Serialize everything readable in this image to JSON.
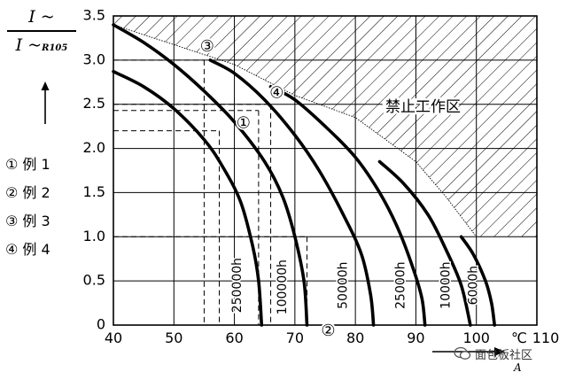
{
  "ylabel": {
    "numerator": "I ~",
    "denominator": "I ~",
    "denominator_sub": "R105"
  },
  "xlabel_sub": "A",
  "legend": [
    "① 例 1",
    "② 例 2",
    "③ 例 3",
    "④ 例 4"
  ],
  "forbidden_zone_label": "禁止工作区",
  "watermark": "面包板社区",
  "chart_data": {
    "type": "line",
    "title": "",
    "xlabel": "",
    "ylabel": "I ~ / I ~R105",
    "xlim": [
      40,
      110
    ],
    "ylim": [
      0,
      3.5
    ],
    "x_ticks": [
      "40",
      "50",
      "60",
      "70",
      "80",
      "90",
      "100",
      "110"
    ],
    "x_unit_label": "℃",
    "y_ticks": [
      "0",
      "0.5",
      "1.0",
      "1.5",
      "2.0",
      "2.5",
      "3.0",
      "3.5"
    ],
    "grid": true,
    "series": [
      {
        "name": "250000h",
        "points": [
          [
            40,
            2.87
          ],
          [
            45,
            2.7
          ],
          [
            50,
            2.45
          ],
          [
            55,
            2.1
          ],
          [
            58,
            1.8
          ],
          [
            61,
            1.4
          ],
          [
            63,
            0.9
          ],
          [
            64,
            0.5
          ],
          [
            64.5,
            0
          ]
        ]
      },
      {
        "name": "100000h",
        "points": [
          [
            40,
            3.4
          ],
          [
            45,
            3.2
          ],
          [
            50,
            2.95
          ],
          [
            55,
            2.65
          ],
          [
            60,
            2.3
          ],
          [
            65,
            1.85
          ],
          [
            68,
            1.45
          ],
          [
            70,
            1.0
          ],
          [
            71.5,
            0.5
          ],
          [
            72,
            0
          ]
        ]
      },
      {
        "name": "50000h",
        "points": [
          [
            56,
            3.0
          ],
          [
            60,
            2.85
          ],
          [
            65,
            2.55
          ],
          [
            70,
            2.15
          ],
          [
            74,
            1.75
          ],
          [
            78,
            1.25
          ],
          [
            81,
            0.8
          ],
          [
            82.5,
            0.35
          ],
          [
            83,
            0
          ]
        ]
      },
      {
        "name": "25000h",
        "points": [
          [
            66,
            2.7
          ],
          [
            70,
            2.55
          ],
          [
            75,
            2.25
          ],
          [
            80,
            1.9
          ],
          [
            84,
            1.5
          ],
          [
            87,
            1.1
          ],
          [
            89.5,
            0.65
          ],
          [
            91,
            0.3
          ],
          [
            91.5,
            0
          ]
        ]
      },
      {
        "name": "10000h",
        "points": [
          [
            84,
            1.85
          ],
          [
            88,
            1.6
          ],
          [
            92,
            1.25
          ],
          [
            95,
            0.85
          ],
          [
            97.5,
            0.45
          ],
          [
            99,
            0
          ]
        ]
      },
      {
        "name": "6000h",
        "points": [
          [
            97.5,
            1.0
          ],
          [
            99.5,
            0.8
          ],
          [
            101.5,
            0.5
          ],
          [
            102.5,
            0.25
          ],
          [
            103,
            0
          ]
        ]
      }
    ],
    "limit_line": [
      [
        40,
        3.4
      ],
      [
        60,
        2.95
      ],
      [
        70,
        2.6
      ],
      [
        80,
        2.35
      ],
      [
        90,
        1.85
      ],
      [
        95,
        1.45
      ],
      [
        100,
        1.0
      ]
    ],
    "dashed_guides": [
      {
        "label": "③",
        "x": 55,
        "y": 3.0
      },
      {
        "label": "④",
        "x": 66,
        "y": 2.5
      },
      {
        "label": "①",
        "x": 64,
        "y": 2.43
      },
      {
        "label": "①",
        "x": 57.5,
        "y": 2.2
      },
      {
        "label": "②",
        "x": 72,
        "y": 1.0
      }
    ],
    "markers": [
      {
        "label": "③",
        "x": 55.5,
        "y": 3.15
      },
      {
        "label": "④",
        "x": 67,
        "y": 2.62
      },
      {
        "label": "①",
        "x": 61.5,
        "y": 2.28
      },
      {
        "label": "②",
        "x": 75.5,
        "y": -0.07
      }
    ],
    "curve_labels": [
      {
        "text": "250000h",
        "x": 60.5,
        "y": 0.45
      },
      {
        "text": "100000h",
        "x": 68,
        "y": 0.43
      },
      {
        "text": "50000h",
        "x": 78,
        "y": 0.45
      },
      {
        "text": "25000h",
        "x": 87.5,
        "y": 0.45
      },
      {
        "text": "10000h",
        "x": 95,
        "y": 0.45
      },
      {
        "text": "6000h",
        "x": 99.5,
        "y": 0.45
      }
    ]
  }
}
